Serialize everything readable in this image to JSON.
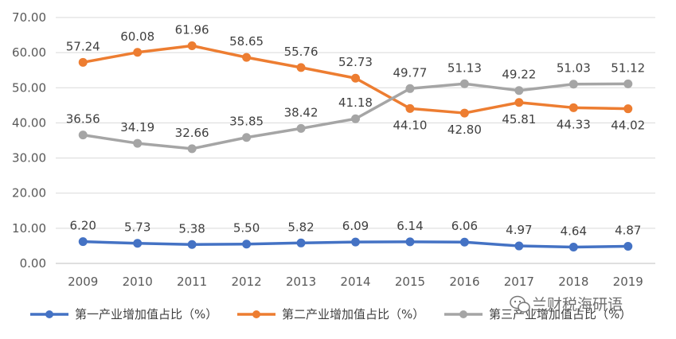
{
  "chart_data": {
    "type": "line",
    "title": "",
    "xlabel": "",
    "ylabel": "",
    "categories": [
      "2009",
      "2010",
      "2011",
      "2012",
      "2013",
      "2014",
      "2015",
      "2016",
      "2017",
      "2018",
      "2019"
    ],
    "ylim": [
      0,
      70
    ],
    "yticks": [
      "0.00",
      "10.00",
      "20.00",
      "30.00",
      "40.00",
      "50.00",
      "60.00",
      "70.00"
    ],
    "grid": "horizontal",
    "legend_position": "bottom",
    "series": [
      {
        "name": "第一产业增加值占比（%）",
        "color": "#4472C4",
        "values": [
          6.2,
          5.73,
          5.38,
          5.5,
          5.82,
          6.09,
          6.14,
          6.06,
          4.97,
          4.64,
          4.87
        ],
        "labels": [
          "6.20",
          "5.73",
          "5.38",
          "5.50",
          "5.82",
          "6.09",
          "6.14",
          "6.06",
          "4.97",
          "4.64",
          "4.87"
        ]
      },
      {
        "name": "第二产业增加值占比（%）",
        "color": "#ED7D31",
        "values": [
          57.24,
          60.08,
          61.96,
          58.65,
          55.76,
          52.73,
          44.1,
          42.8,
          45.81,
          44.33,
          44.02
        ],
        "labels": [
          "57.24",
          "60.08",
          "61.96",
          "58.65",
          "55.76",
          "52.73",
          "44.10",
          "42.80",
          "45.81",
          "44.33",
          "44.02"
        ]
      },
      {
        "name": "第三产业增加值占比（%）",
        "color": "#A5A5A5",
        "values": [
          36.56,
          34.19,
          32.66,
          35.85,
          38.42,
          41.18,
          49.77,
          51.13,
          49.22,
          51.03,
          51.12
        ],
        "labels": [
          "36.56",
          "34.19",
          "32.66",
          "35.85",
          "38.42",
          "41.18",
          "49.77",
          "51.13",
          "49.22",
          "51.03",
          "51.12"
        ]
      }
    ]
  },
  "watermark": {
    "text": "兰财税海研语",
    "icon": "wechat-icon"
  }
}
